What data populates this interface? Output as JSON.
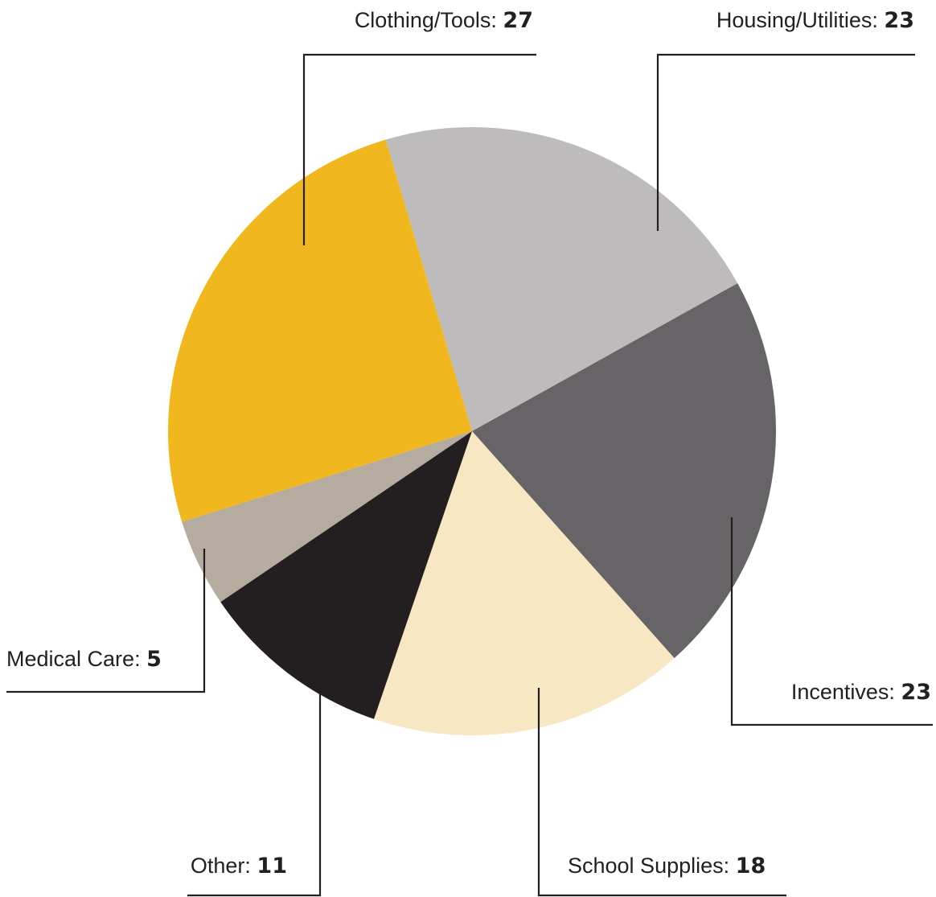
{
  "chart_data": {
    "type": "pie",
    "title": "",
    "slices": [
      {
        "label": "Housing/Utilities",
        "value": 23,
        "color": "#bebbbc"
      },
      {
        "label": "Incentives",
        "value": 23,
        "color": "#666467"
      },
      {
        "label": "School Supplies",
        "value": 18,
        "color": "#f7e8c3"
      },
      {
        "label": "Other",
        "value": 11,
        "color": "#231f20"
      },
      {
        "label": "Medical Care",
        "value": 5,
        "color": "#b5ab9e"
      },
      {
        "label": "Clothing/Tools",
        "value": 27,
        "color": "#f0b71e"
      }
    ],
    "legend": "none",
    "labels": "callouts with leader lines"
  }
}
